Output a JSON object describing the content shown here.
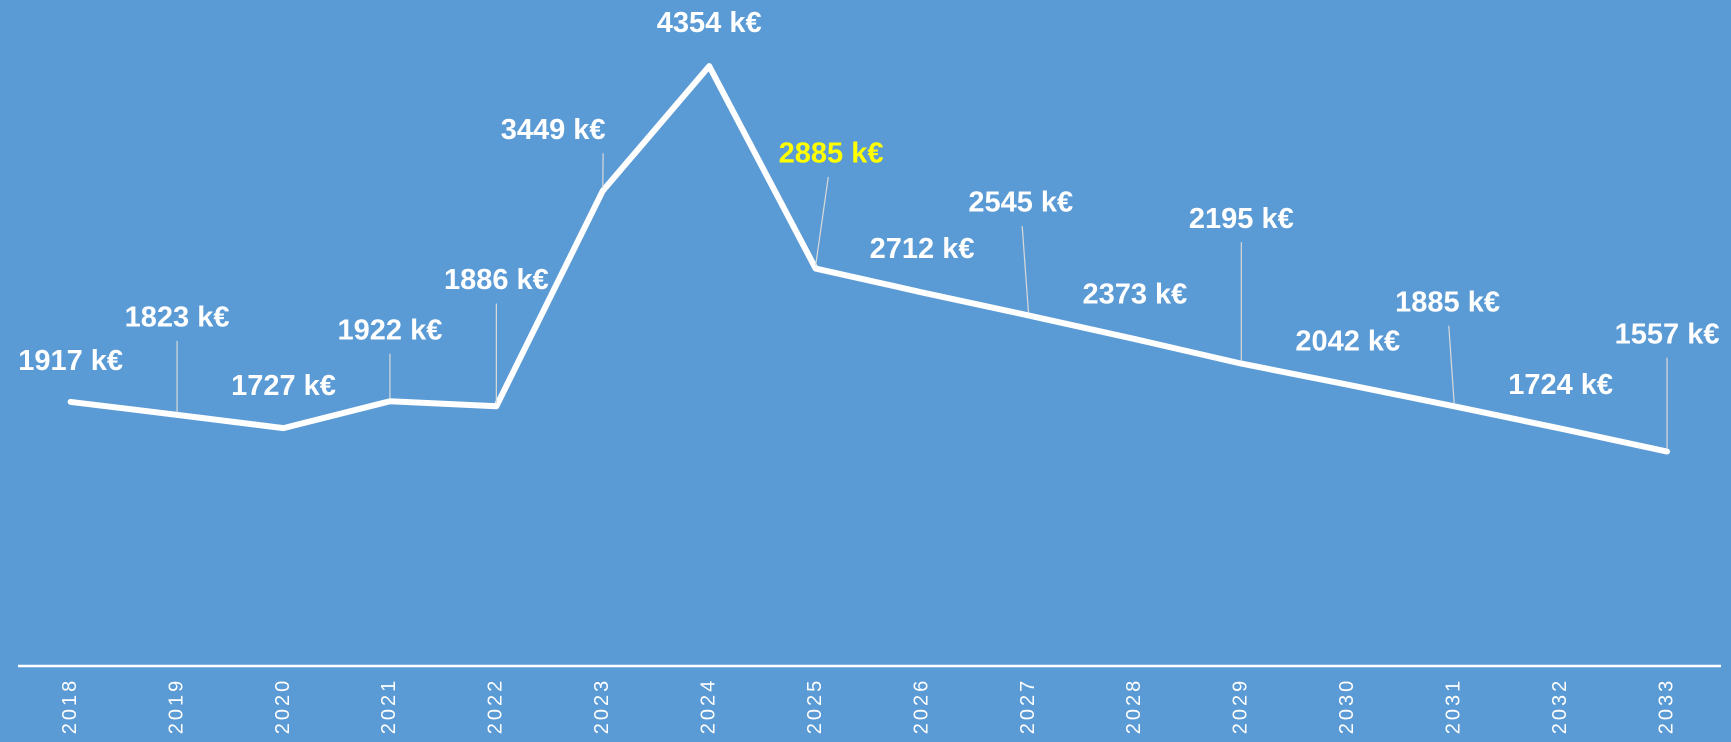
{
  "chart_data": {
    "type": "line",
    "categories": [
      "2018",
      "2019",
      "2020",
      "2021",
      "2022",
      "2023",
      "2024",
      "2025",
      "2026",
      "2027",
      "2028",
      "2029",
      "2030",
      "2031",
      "2032",
      "2033"
    ],
    "values": [
      1917,
      1823,
      1727,
      1922,
      1886,
      3449,
      4354,
      2885,
      2712,
      2545,
      2373,
      2195,
      2042,
      1885,
      1724,
      1557
    ],
    "value_labels": [
      "1917 k€",
      "1823 k€",
      "1727 k€",
      "1922 k€",
      "1886 k€",
      "3449 k€",
      "4354 k€",
      "2885 k€",
      "2712 k€",
      "2545 k€",
      "2373 k€",
      "2195 k€",
      "2042 k€",
      "1885 k€",
      "1724 k€",
      "1557 k€"
    ],
    "color": "#ffffff",
    "value_label_colors": [
      "#ffffff",
      "#ffffff",
      "#ffffff",
      "#ffffff",
      "#ffffff",
      "#ffffff",
      "#ffffff",
      "#ffff00",
      "#ffffff",
      "#ffffff",
      "#ffffff",
      "#ffffff",
      "#ffffff",
      "#ffffff",
      "#ffffff",
      "#ffffff"
    ]
  }
}
